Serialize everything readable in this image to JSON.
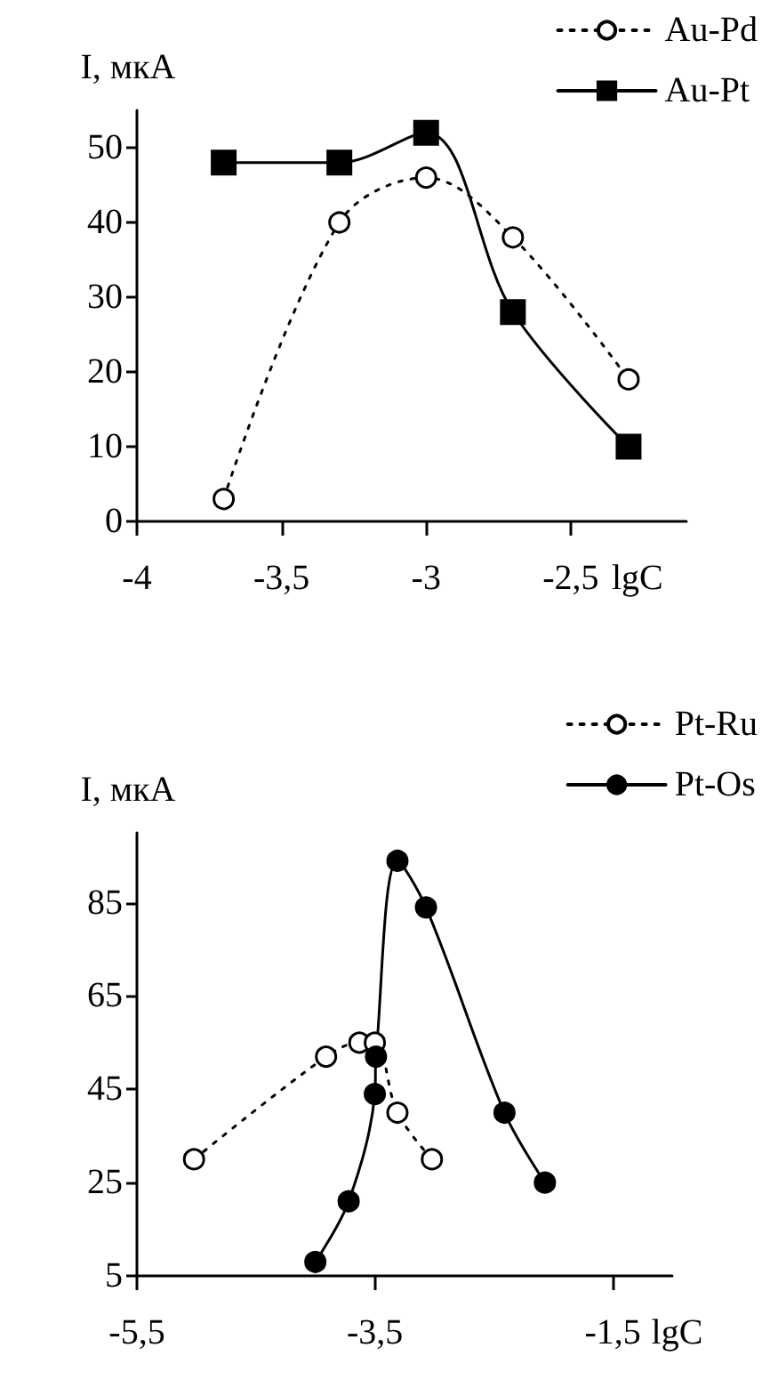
{
  "chart_data": [
    {
      "type": "line",
      "ylabel": "I, мкА",
      "xlabel": "lgC",
      "xlim": [
        -4,
        -2.1
      ],
      "xticks": [
        -4,
        {
          "value": -3.5,
          "label": "-3,5"
        },
        -3,
        {
          "value": -2.5,
          "label": "-2,5"
        }
      ],
      "ylim": [
        0,
        55
      ],
      "yticks": [
        0,
        10,
        20,
        30,
        40,
        50
      ],
      "legend": "top right",
      "grid": false,
      "series": [
        {
          "name": "Au-Pd",
          "color": "#000000",
          "marker": "circle",
          "line_style": "dotted",
          "x": [
            -3.7,
            -3.3,
            -3.0,
            -2.7,
            -2.3
          ],
          "values": [
            3,
            40,
            46,
            38,
            19
          ]
        },
        {
          "name": "Au-Pt",
          "color": "#000000",
          "marker": "square",
          "line_style": "solid",
          "x": [
            -3.7,
            -3.3,
            -3.0,
            -2.7,
            -2.3
          ],
          "values": [
            48,
            48,
            52,
            28,
            10
          ]
        }
      ]
    },
    {
      "type": "line",
      "ylabel": "I, мкА",
      "xlabel": "lgC",
      "xlim": [
        -5.5,
        -1
      ],
      "xticks": [
        {
          "value": -5.5,
          "label": "-5,5"
        },
        {
          "value": -3.5,
          "label": "-3,5"
        },
        {
          "value": -1.5,
          "label": "-1,5"
        }
      ],
      "ylim": [
        5,
        100
      ],
      "yticks": [
        5,
        25,
        45,
        65,
        85
      ],
      "legend": "top right",
      "grid": false,
      "series": [
        {
          "name": "Pt-Ru",
          "color": "#000000",
          "marker": "circle",
          "line_style": "dotted",
          "x": [
            -5.02,
            -3.91,
            -3.63,
            -3.5,
            -3.31,
            -3.02
          ],
          "values": [
            30,
            52,
            55,
            55,
            40,
            30
          ]
        },
        {
          "name": "Pt-Os",
          "color": "#000000",
          "marker": "circle",
          "line_style": "solid",
          "x": [
            -4.0,
            -3.72,
            -3.5,
            -3.49,
            -3.31,
            -3.07,
            -2.41,
            -2.07
          ],
          "values": [
            8,
            21,
            44,
            52,
            94,
            84,
            40,
            25
          ]
        }
      ]
    }
  ]
}
